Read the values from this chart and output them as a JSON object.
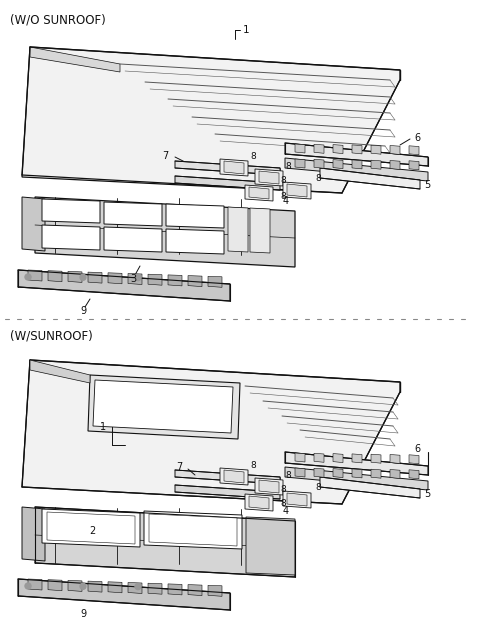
{
  "background_color": "#ffffff",
  "line_color": "#333333",
  "section1_label": "(W/O SUNROOF)",
  "section2_label": "(W/SUNROOF)",
  "fig_width": 4.8,
  "fig_height": 6.37,
  "dpi": 100
}
